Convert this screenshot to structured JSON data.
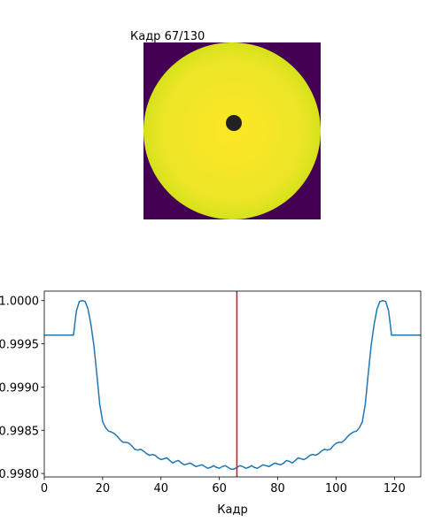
{
  "chart_data": [
    {
      "type": "image",
      "title": "Кадр 67/130"
    },
    {
      "type": "line",
      "xlabel": "Кадр",
      "x": [
        0,
        1,
        2,
        3,
        4,
        5,
        6,
        7,
        8,
        9,
        10,
        11,
        12,
        13,
        14,
        15,
        16,
        17,
        18,
        19,
        20,
        21,
        22,
        23,
        24,
        25,
        26,
        27,
        28,
        29,
        30,
        31,
        32,
        33,
        34,
        35,
        36,
        37,
        38,
        39,
        40,
        41,
        42,
        43,
        44,
        45,
        46,
        47,
        48,
        49,
        50,
        51,
        52,
        53,
        54,
        55,
        56,
        57,
        58,
        59,
        60,
        61,
        62,
        63,
        64,
        65,
        66,
        67,
        68,
        69,
        70,
        71,
        72,
        73,
        74,
        75,
        76,
        77,
        78,
        79,
        80,
        81,
        82,
        83,
        84,
        85,
        86,
        87,
        88,
        89,
        90,
        91,
        92,
        93,
        94,
        95,
        96,
        97,
        98,
        99,
        100,
        101,
        102,
        103,
        104,
        105,
        106,
        107,
        108,
        109,
        110,
        111,
        112,
        113,
        114,
        115,
        116,
        117,
        118,
        119,
        120,
        121,
        122,
        123,
        124,
        125,
        126,
        127,
        128,
        129
      ],
      "values": [
        0.9996,
        0.9996,
        0.9996,
        0.9996,
        0.9996,
        0.9996,
        0.9996,
        0.9996,
        0.9996,
        0.9996,
        0.9996,
        0.99988,
        0.99999,
        1.0,
        0.99999,
        0.9999,
        0.99972,
        0.99948,
        0.99915,
        0.9988,
        0.9986,
        0.99853,
        0.99849,
        0.99848,
        0.99846,
        0.99843,
        0.99839,
        0.99836,
        0.99836,
        0.99835,
        0.99832,
        0.99828,
        0.99827,
        0.99828,
        0.99826,
        0.99823,
        0.99821,
        0.99822,
        0.99821,
        0.99818,
        0.99816,
        0.99817,
        0.99818,
        0.99815,
        0.99812,
        0.99814,
        0.99815,
        0.99812,
        0.9981,
        0.99811,
        0.99812,
        0.9981,
        0.99808,
        0.99809,
        0.9981,
        0.99808,
        0.99806,
        0.99807,
        0.99809,
        0.99807,
        0.99806,
        0.99808,
        0.99809,
        0.99807,
        0.99805,
        0.99805,
        0.99807,
        0.99809,
        0.99808,
        0.99806,
        0.99807,
        0.99809,
        0.99807,
        0.99806,
        0.99808,
        0.9981,
        0.99809,
        0.99808,
        0.9981,
        0.99812,
        0.99811,
        0.9981,
        0.99812,
        0.99815,
        0.99814,
        0.99812,
        0.99815,
        0.99818,
        0.99817,
        0.99816,
        0.99818,
        0.99821,
        0.99822,
        0.99821,
        0.99823,
        0.99826,
        0.99828,
        0.99827,
        0.99828,
        0.99832,
        0.99835,
        0.99836,
        0.99836,
        0.99839,
        0.99843,
        0.99846,
        0.99848,
        0.99849,
        0.99853,
        0.9986,
        0.9988,
        0.99915,
        0.99948,
        0.99972,
        0.9999,
        0.99999,
        1.0,
        0.99999,
        0.99988,
        0.9996,
        0.9996,
        0.9996,
        0.9996,
        0.9996,
        0.9996,
        0.9996,
        0.9996,
        0.9996,
        0.9996,
        0.9996
      ],
      "color": "#1f77b4",
      "vline": 66,
      "vline_color": "#ff0000",
      "xlim": [
        0,
        129
      ],
      "xticks": [
        0,
        20,
        40,
        60,
        80,
        100,
        120
      ],
      "ylim": [
        0.99796,
        1.00011
      ],
      "yticks": [
        {
          "value": 0.998,
          "label": "0.9980"
        },
        {
          "value": 0.9985,
          "label": "0.9985"
        },
        {
          "value": 0.999,
          "label": "0.9990"
        },
        {
          "value": 0.9995,
          "label": "0.9995"
        },
        {
          "value": 1,
          "label": "1.0000"
        }
      ]
    }
  ]
}
